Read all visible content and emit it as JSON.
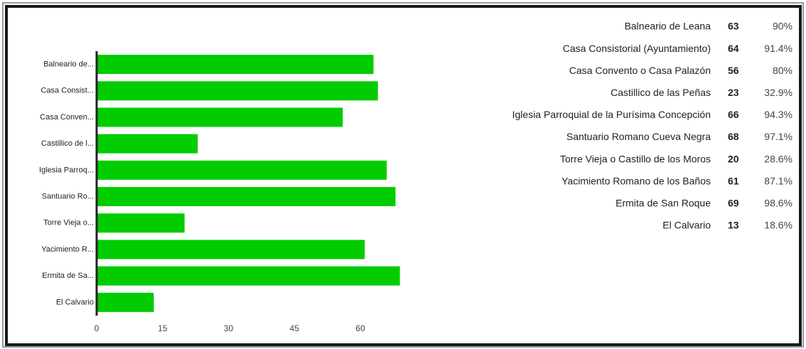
{
  "chart_data": {
    "type": "bar",
    "orientation": "horizontal",
    "color": "#00cc00",
    "categories": [
      "Balneario de...",
      "Casa Consist...",
      "Casa Conven...",
      "Castillico de l...",
      "Iglesia Parroq...",
      "Santuario Ro...",
      "Torre Vieja o...",
      "Yacimiento R...",
      "Ermita de Sa...",
      "El Calvario"
    ],
    "values": [
      63,
      64,
      56,
      23,
      66,
      68,
      20,
      61,
      69,
      13
    ],
    "xlim": [
      0,
      70
    ],
    "xticks": [
      0,
      15,
      30,
      45,
      60
    ],
    "grid": false
  },
  "table": {
    "rows": [
      [
        "Balneario de Leana",
        "63",
        "90%"
      ],
      [
        "Casa Consistorial (Ayuntamiento)",
        "64",
        "91.4%"
      ],
      [
        "Casa Convento o Casa Palazón",
        "56",
        "80%"
      ],
      [
        "Castillico de las Peñas",
        "23",
        "32.9%"
      ],
      [
        "Iglesia Parroquial de la Purísima Concepción",
        "66",
        "94.3%"
      ],
      [
        "Santuario Romano Cueva Negra",
        "68",
        "97.1%"
      ],
      [
        "Torre Vieja o Castillo de los Moros",
        "20",
        "28.6%"
      ],
      [
        "Yacimiento Romano de los Baños",
        "61",
        "87.1%"
      ],
      [
        "Ermita de San Roque",
        "69",
        "98.6%"
      ],
      [
        "El Calvario",
        "13",
        "18.6%"
      ]
    ]
  }
}
